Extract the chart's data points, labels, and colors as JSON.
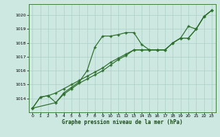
{
  "xlabel": "Graphe pression niveau de la mer (hPa)",
  "bg_color": "#cce8e0",
  "grid_color": "#aacfc8",
  "line_color": "#2d6e2d",
  "ylim": [
    1013.0,
    1020.8
  ],
  "xlim": [
    -0.5,
    23.5
  ],
  "yticks": [
    1014,
    1015,
    1016,
    1017,
    1018,
    1019,
    1020
  ],
  "xticks": [
    0,
    1,
    2,
    3,
    4,
    5,
    6,
    7,
    8,
    9,
    10,
    11,
    12,
    13,
    14,
    15,
    16,
    17,
    18,
    19,
    20,
    21,
    22,
    23
  ],
  "line1_x": [
    0,
    1,
    2,
    3,
    4,
    5,
    6,
    7,
    8,
    9,
    10,
    11,
    12,
    13,
    14,
    15,
    16,
    17,
    18,
    19,
    20,
    21,
    22,
    23
  ],
  "line1_y": [
    1013.3,
    1014.1,
    1014.2,
    1013.7,
    1014.4,
    1014.8,
    1015.2,
    1016.0,
    1017.7,
    1018.5,
    1018.5,
    1018.6,
    1018.75,
    1018.75,
    1017.9,
    1017.5,
    1017.5,
    1017.5,
    1018.0,
    1018.35,
    1019.2,
    1019.0,
    1019.9,
    1020.35
  ],
  "line2_x": [
    0,
    1,
    2,
    3,
    4,
    5,
    6,
    7,
    8,
    9,
    10,
    11,
    12,
    13,
    14,
    15,
    16,
    17,
    18,
    19,
    20,
    21,
    22,
    23
  ],
  "line2_y": [
    1013.3,
    1014.1,
    1014.2,
    1014.4,
    1014.7,
    1015.0,
    1015.3,
    1015.6,
    1015.9,
    1016.2,
    1016.6,
    1016.9,
    1017.2,
    1017.5,
    1017.5,
    1017.5,
    1017.5,
    1017.5,
    1018.0,
    1018.35,
    1018.35,
    1019.0,
    1019.9,
    1020.35
  ],
  "line3_x": [
    0,
    3,
    4,
    5,
    6,
    7,
    8,
    9,
    10,
    11,
    12,
    13,
    14,
    15,
    16,
    17,
    18,
    19,
    20,
    21,
    22,
    23
  ],
  "line3_y": [
    1013.3,
    1013.7,
    1014.3,
    1014.7,
    1015.1,
    1015.4,
    1015.7,
    1016.0,
    1016.4,
    1016.8,
    1017.1,
    1017.5,
    1017.5,
    1017.5,
    1017.5,
    1017.5,
    1018.0,
    1018.35,
    1018.35,
    1019.0,
    1019.9,
    1020.35
  ]
}
